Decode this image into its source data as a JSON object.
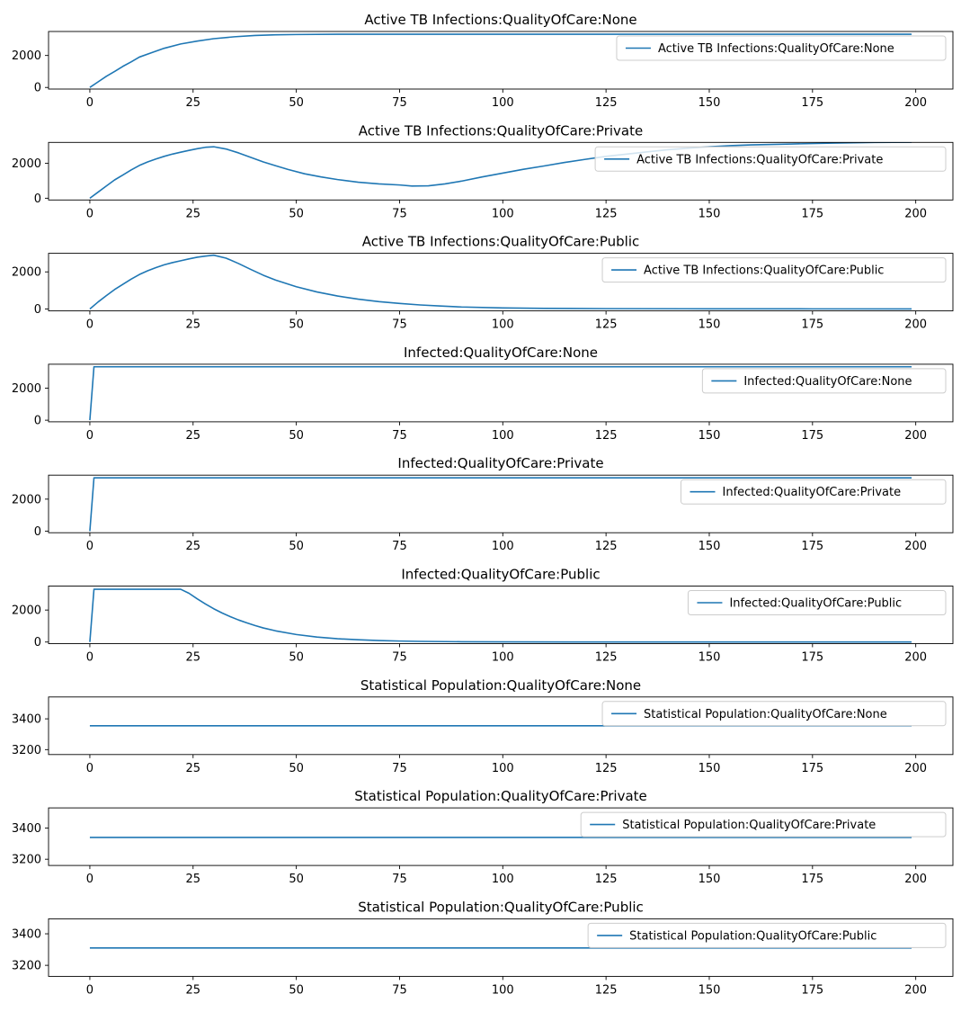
{
  "chart_data": [
    {
      "type": "line",
      "title": "Active TB Infections:QualityOfCare:None",
      "xlim": [
        -10,
        209
      ],
      "ylim": [
        -100,
        3500
      ],
      "xticks": [
        0,
        25,
        50,
        75,
        100,
        125,
        150,
        175,
        200
      ],
      "yticks": [
        0,
        2000
      ],
      "legend": "upper right",
      "series": [
        {
          "name": "Active TB Infections:QualityOfCare:None",
          "color": "#1f77b4",
          "points": [
            [
              0,
              0
            ],
            [
              2,
              350
            ],
            [
              4,
              700
            ],
            [
              6,
              1000
            ],
            [
              8,
              1320
            ],
            [
              10,
              1600
            ],
            [
              12,
              1900
            ],
            [
              15,
              2180
            ],
            [
              18,
              2450
            ],
            [
              22,
              2720
            ],
            [
              26,
              2900
            ],
            [
              30,
              3050
            ],
            [
              35,
              3170
            ],
            [
              40,
              3250
            ],
            [
              45,
              3290
            ],
            [
              50,
              3310
            ],
            [
              60,
              3325
            ],
            [
              75,
              3330
            ],
            [
              100,
              3330
            ],
            [
              150,
              3330
            ],
            [
              199,
              3330
            ]
          ]
        }
      ]
    },
    {
      "type": "line",
      "title": "Active TB Infections:QualityOfCare:Private",
      "xlim": [
        -10,
        209
      ],
      "ylim": [
        -100,
        3200
      ],
      "xticks": [
        0,
        25,
        50,
        75,
        100,
        125,
        150,
        175,
        200
      ],
      "yticks": [
        0,
        2000
      ],
      "legend": "upper right",
      "series": [
        {
          "name": "Active TB Infections:QualityOfCare:Private",
          "color": "#1f77b4",
          "points": [
            [
              0,
              0
            ],
            [
              2,
              350
            ],
            [
              4,
              700
            ],
            [
              6,
              1050
            ],
            [
              8,
              1330
            ],
            [
              10,
              1620
            ],
            [
              12,
              1880
            ],
            [
              14,
              2080
            ],
            [
              16,
              2250
            ],
            [
              18,
              2400
            ],
            [
              20,
              2530
            ],
            [
              22,
              2640
            ],
            [
              24,
              2740
            ],
            [
              26,
              2840
            ],
            [
              28,
              2920
            ],
            [
              30,
              2950
            ],
            [
              33,
              2820
            ],
            [
              36,
              2600
            ],
            [
              39,
              2340
            ],
            [
              42,
              2080
            ],
            [
              45,
              1860
            ],
            [
              48,
              1650
            ],
            [
              52,
              1400
            ],
            [
              56,
              1220
            ],
            [
              60,
              1070
            ],
            [
              65,
              920
            ],
            [
              70,
              820
            ],
            [
              75,
              760
            ],
            [
              78,
              700
            ],
            [
              82,
              710
            ],
            [
              86,
              820
            ],
            [
              90,
              980
            ],
            [
              95,
              1220
            ],
            [
              100,
              1440
            ],
            [
              105,
              1660
            ],
            [
              110,
              1850
            ],
            [
              115,
              2050
            ],
            [
              120,
              2230
            ],
            [
              125,
              2400
            ],
            [
              130,
              2530
            ],
            [
              135,
              2660
            ],
            [
              140,
              2780
            ],
            [
              145,
              2870
            ],
            [
              150,
              2950
            ],
            [
              155,
              3010
            ],
            [
              160,
              3060
            ],
            [
              170,
              3110
            ],
            [
              180,
              3160
            ],
            [
              190,
              3200
            ],
            [
              199,
              3210
            ]
          ]
        }
      ]
    },
    {
      "type": "line",
      "title": "Active TB Infections:QualityOfCare:Public",
      "xlim": [
        -10,
        209
      ],
      "ylim": [
        -100,
        3000
      ],
      "xticks": [
        0,
        25,
        50,
        75,
        100,
        125,
        150,
        175,
        200
      ],
      "yticks": [
        0,
        2000
      ],
      "legend": "upper right",
      "series": [
        {
          "name": "Active TB Infections:QualityOfCare:Public",
          "color": "#1f77b4",
          "points": [
            [
              0,
              0
            ],
            [
              2,
              380
            ],
            [
              4,
              720
            ],
            [
              6,
              1050
            ],
            [
              8,
              1330
            ],
            [
              10,
              1610
            ],
            [
              12,
              1860
            ],
            [
              14,
              2060
            ],
            [
              16,
              2230
            ],
            [
              18,
              2380
            ],
            [
              20,
              2500
            ],
            [
              22,
              2600
            ],
            [
              24,
              2700
            ],
            [
              26,
              2790
            ],
            [
              28,
              2850
            ],
            [
              30,
              2900
            ],
            [
              33,
              2740
            ],
            [
              36,
              2450
            ],
            [
              39,
              2130
            ],
            [
              42,
              1820
            ],
            [
              45,
              1560
            ],
            [
              50,
              1200
            ],
            [
              55,
              920
            ],
            [
              60,
              700
            ],
            [
              65,
              530
            ],
            [
              70,
              400
            ],
            [
              75,
              300
            ],
            [
              80,
              220
            ],
            [
              85,
              160
            ],
            [
              90,
              110
            ],
            [
              100,
              60
            ],
            [
              110,
              35
            ],
            [
              125,
              20
            ],
            [
              150,
              12
            ],
            [
              175,
              8
            ],
            [
              199,
              5
            ]
          ]
        }
      ]
    },
    {
      "type": "line",
      "title": "Infected:QualityOfCare:None",
      "xlim": [
        -10,
        209
      ],
      "ylim": [
        -100,
        3500
      ],
      "xticks": [
        0,
        25,
        50,
        75,
        100,
        125,
        150,
        175,
        200
      ],
      "yticks": [
        0,
        2000
      ],
      "legend": "upper right",
      "series": [
        {
          "name": "Infected:QualityOfCare:None",
          "color": "#1f77b4",
          "points": [
            [
              0,
              0
            ],
            [
              1,
              3340
            ],
            [
              50,
              3340
            ],
            [
              100,
              3340
            ],
            [
              150,
              3340
            ],
            [
              199,
              3340
            ]
          ]
        }
      ]
    },
    {
      "type": "line",
      "title": "Infected:QualityOfCare:Private",
      "xlim": [
        -10,
        209
      ],
      "ylim": [
        -100,
        3500
      ],
      "xticks": [
        0,
        25,
        50,
        75,
        100,
        125,
        150,
        175,
        200
      ],
      "yticks": [
        0,
        2000
      ],
      "legend": "upper right",
      "series": [
        {
          "name": "Infected:QualityOfCare:Private",
          "color": "#1f77b4",
          "points": [
            [
              0,
              0
            ],
            [
              1,
              3330
            ],
            [
              50,
              3330
            ],
            [
              100,
              3330
            ],
            [
              150,
              3330
            ],
            [
              199,
              3330
            ]
          ]
        }
      ]
    },
    {
      "type": "line",
      "title": "Infected:QualityOfCare:Public",
      "xlim": [
        -10,
        209
      ],
      "ylim": [
        -100,
        3500
      ],
      "xticks": [
        0,
        25,
        50,
        75,
        100,
        125,
        150,
        175,
        200
      ],
      "yticks": [
        0,
        2000
      ],
      "legend": "upper right",
      "series": [
        {
          "name": "Infected:QualityOfCare:Public",
          "color": "#1f77b4",
          "points": [
            [
              0,
              0
            ],
            [
              1,
              3300
            ],
            [
              10,
              3300
            ],
            [
              20,
              3300
            ],
            [
              22,
              3300
            ],
            [
              24,
              3050
            ],
            [
              26,
              2700
            ],
            [
              28,
              2380
            ],
            [
              30,
              2080
            ],
            [
              32,
              1820
            ],
            [
              34,
              1590
            ],
            [
              36,
              1380
            ],
            [
              38,
              1200
            ],
            [
              40,
              1030
            ],
            [
              42,
              880
            ],
            [
              45,
              700
            ],
            [
              50,
              470
            ],
            [
              55,
              310
            ],
            [
              60,
              205
            ],
            [
              65,
              140
            ],
            [
              70,
              95
            ],
            [
              75,
              62
            ],
            [
              80,
              40
            ],
            [
              90,
              18
            ],
            [
              100,
              8
            ],
            [
              125,
              3
            ],
            [
              150,
              1
            ],
            [
              199,
              0
            ]
          ]
        }
      ]
    },
    {
      "type": "line",
      "title": "Statistical Population:QualityOfCare:None",
      "xlim": [
        -10,
        209
      ],
      "ylim": [
        3168,
        3542
      ],
      "xticks": [
        0,
        25,
        50,
        75,
        100,
        125,
        150,
        175,
        200
      ],
      "yticks": [
        3200,
        3400
      ],
      "legend": "upper right",
      "series": [
        {
          "name": "Statistical Population:QualityOfCare:None",
          "color": "#1f77b4",
          "points": [
            [
              0,
              3355
            ],
            [
              199,
              3355
            ]
          ]
        }
      ]
    },
    {
      "type": "line",
      "title": "Statistical Population:QualityOfCare:Private",
      "xlim": [
        -10,
        209
      ],
      "ylim": [
        3160,
        3530
      ],
      "xticks": [
        0,
        25,
        50,
        75,
        100,
        125,
        150,
        175,
        200
      ],
      "yticks": [
        3200,
        3400
      ],
      "legend": "upper right",
      "series": [
        {
          "name": "Statistical Population:QualityOfCare:Private",
          "color": "#1f77b4",
          "points": [
            [
              0,
              3340
            ],
            [
              199,
              3340
            ]
          ]
        }
      ]
    },
    {
      "type": "line",
      "title": "Statistical Population:QualityOfCare:Public",
      "xlim": [
        -10,
        209
      ],
      "ylim": [
        3130,
        3495
      ],
      "xticks": [
        0,
        25,
        50,
        75,
        100,
        125,
        150,
        175,
        200
      ],
      "yticks": [
        3200,
        3400
      ],
      "legend": "upper right",
      "series": [
        {
          "name": "Statistical Population:QualityOfCare:Public",
          "color": "#1f77b4",
          "points": [
            [
              0,
              3310
            ],
            [
              199,
              3310
            ]
          ]
        }
      ]
    }
  ]
}
